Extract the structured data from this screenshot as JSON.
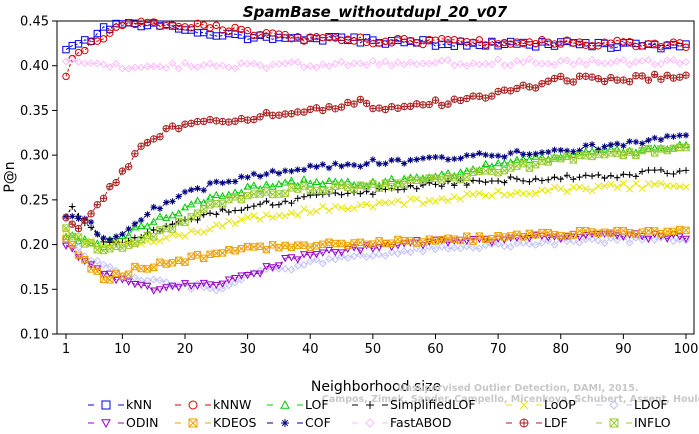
{
  "chart_data": {
    "type": "line",
    "title": "SpamBase_withoutdupl_20_v07",
    "xlabel": "Neighborhood size",
    "ylabel": "P@n",
    "xlim": [
      1,
      100
    ],
    "ylim": [
      0.1,
      0.45
    ],
    "xticks": [
      1,
      10,
      20,
      30,
      40,
      50,
      60,
      70,
      80,
      90,
      100
    ],
    "yticks": [
      0.1,
      0.15,
      0.2,
      0.25,
      0.3,
      0.35,
      0.4,
      0.45
    ],
    "ytick_labels": [
      "0.10",
      "0.15",
      "0.20",
      "0.25",
      "0.30",
      "0.35",
      "0.40",
      "0.45"
    ],
    "watermark_line1": "Unsupervised Outlier Detection, DAMI, 2015.",
    "watermark_line2": "Campos, Zimek, Sander, Campello, Micenkova, Schubert, Assent, Houle",
    "grid": false,
    "legend_position": "bottom",
    "series": [
      {
        "name": "kNN",
        "color": "#0000ee",
        "marker": "square",
        "knots": [
          [
            1,
            0.418
          ],
          [
            3,
            0.422
          ],
          [
            5,
            0.43
          ],
          [
            7,
            0.44
          ],
          [
            10,
            0.446
          ],
          [
            15,
            0.445
          ],
          [
            20,
            0.441
          ],
          [
            25,
            0.436
          ],
          [
            30,
            0.432
          ],
          [
            40,
            0.43
          ],
          [
            50,
            0.428
          ],
          [
            60,
            0.425
          ],
          [
            70,
            0.424
          ],
          [
            80,
            0.424
          ],
          [
            90,
            0.423
          ],
          [
            100,
            0.421
          ]
        ]
      },
      {
        "name": "kNNW",
        "color": "#dd0000",
        "marker": "circle",
        "knots": [
          [
            1,
            0.388
          ],
          [
            2,
            0.41
          ],
          [
            4,
            0.42
          ],
          [
            7,
            0.432
          ],
          [
            10,
            0.445
          ],
          [
            15,
            0.447
          ],
          [
            20,
            0.446
          ],
          [
            25,
            0.444
          ],
          [
            30,
            0.437
          ],
          [
            40,
            0.43
          ],
          [
            50,
            0.428
          ],
          [
            60,
            0.427
          ],
          [
            70,
            0.426
          ],
          [
            80,
            0.426
          ],
          [
            90,
            0.425
          ],
          [
            100,
            0.424
          ]
        ]
      },
      {
        "name": "LOF",
        "color": "#00cc00",
        "marker": "triangle",
        "knots": [
          [
            1,
            0.21
          ],
          [
            4,
            0.205
          ],
          [
            7,
            0.2
          ],
          [
            10,
            0.21
          ],
          [
            15,
            0.225
          ],
          [
            20,
            0.24
          ],
          [
            25,
            0.255
          ],
          [
            30,
            0.262
          ],
          [
            35,
            0.267
          ],
          [
            40,
            0.27
          ],
          [
            50,
            0.268
          ],
          [
            60,
            0.275
          ],
          [
            70,
            0.29
          ],
          [
            80,
            0.3
          ],
          [
            90,
            0.305
          ],
          [
            100,
            0.31
          ]
        ]
      },
      {
        "name": "SimplifiedLOF",
        "color": "#000000",
        "marker": "plus",
        "knots": [
          [
            1,
            0.23
          ],
          [
            2,
            0.242
          ],
          [
            4,
            0.225
          ],
          [
            7,
            0.2
          ],
          [
            10,
            0.205
          ],
          [
            15,
            0.215
          ],
          [
            20,
            0.225
          ],
          [
            25,
            0.237
          ],
          [
            30,
            0.243
          ],
          [
            35,
            0.248
          ],
          [
            40,
            0.252
          ],
          [
            50,
            0.258
          ],
          [
            60,
            0.268
          ],
          [
            70,
            0.272
          ],
          [
            80,
            0.275
          ],
          [
            90,
            0.278
          ],
          [
            100,
            0.283
          ]
        ]
      },
      {
        "name": "LoOP",
        "color": "#e8e800",
        "marker": "x",
        "knots": [
          [
            1,
            0.215
          ],
          [
            4,
            0.205
          ],
          [
            7,
            0.198
          ],
          [
            10,
            0.2
          ],
          [
            15,
            0.205
          ],
          [
            20,
            0.212
          ],
          [
            25,
            0.22
          ],
          [
            30,
            0.228
          ],
          [
            35,
            0.234
          ],
          [
            40,
            0.238
          ],
          [
            50,
            0.245
          ],
          [
            60,
            0.25
          ],
          [
            70,
            0.258
          ],
          [
            80,
            0.262
          ],
          [
            90,
            0.265
          ],
          [
            100,
            0.267
          ]
        ]
      },
      {
        "name": "LDOF",
        "color": "#c0c0ff",
        "marker": "diamond",
        "knots": [
          [
            1,
            0.2
          ],
          [
            3,
            0.195
          ],
          [
            6,
            0.18
          ],
          [
            10,
            0.165
          ],
          [
            15,
            0.158
          ],
          [
            20,
            0.155
          ],
          [
            25,
            0.15
          ],
          [
            30,
            0.165
          ],
          [
            35,
            0.172
          ],
          [
            40,
            0.18
          ],
          [
            50,
            0.188
          ],
          [
            60,
            0.195
          ],
          [
            70,
            0.2
          ],
          [
            80,
            0.203
          ],
          [
            90,
            0.205
          ],
          [
            100,
            0.207
          ]
        ]
      },
      {
        "name": "ODIN",
        "color": "#9900cc",
        "marker": "triangle-down",
        "knots": [
          [
            1,
            0.2
          ],
          [
            3,
            0.185
          ],
          [
            6,
            0.17
          ],
          [
            10,
            0.158
          ],
          [
            15,
            0.152
          ],
          [
            20,
            0.155
          ],
          [
            25,
            0.153
          ],
          [
            30,
            0.165
          ],
          [
            35,
            0.18
          ],
          [
            40,
            0.19
          ],
          [
            50,
            0.198
          ],
          [
            60,
            0.203
          ],
          [
            70,
            0.205
          ],
          [
            80,
            0.21
          ],
          [
            90,
            0.21
          ],
          [
            100,
            0.208
          ]
        ]
      },
      {
        "name": "KDEOS",
        "color": "#f0a000",
        "marker": "square-x",
        "knots": [
          [
            1,
            0.21
          ],
          [
            3,
            0.19
          ],
          [
            5,
            0.175
          ],
          [
            7,
            0.16
          ],
          [
            10,
            0.168
          ],
          [
            15,
            0.178
          ],
          [
            20,
            0.183
          ],
          [
            25,
            0.19
          ],
          [
            30,
            0.195
          ],
          [
            35,
            0.198
          ],
          [
            40,
            0.2
          ],
          [
            50,
            0.203
          ],
          [
            60,
            0.205
          ],
          [
            70,
            0.208
          ],
          [
            80,
            0.212
          ],
          [
            90,
            0.214
          ],
          [
            100,
            0.215
          ]
        ]
      },
      {
        "name": "COF",
        "color": "#000080",
        "marker": "star",
        "knots": [
          [
            1,
            0.232
          ],
          [
            3,
            0.23
          ],
          [
            5,
            0.225
          ],
          [
            7,
            0.205
          ],
          [
            10,
            0.215
          ],
          [
            15,
            0.24
          ],
          [
            20,
            0.258
          ],
          [
            25,
            0.268
          ],
          [
            30,
            0.276
          ],
          [
            40,
            0.285
          ],
          [
            50,
            0.292
          ],
          [
            60,
            0.296
          ],
          [
            70,
            0.3
          ],
          [
            80,
            0.305
          ],
          [
            90,
            0.312
          ],
          [
            100,
            0.323
          ]
        ]
      },
      {
        "name": "FastABOD",
        "color": "#ffbbff",
        "marker": "diamond",
        "knots": [
          [
            1,
            0.405
          ],
          [
            5,
            0.402
          ],
          [
            10,
            0.4
          ],
          [
            20,
            0.4
          ],
          [
            30,
            0.4
          ],
          [
            40,
            0.401
          ],
          [
            50,
            0.402
          ],
          [
            60,
            0.403
          ],
          [
            70,
            0.404
          ],
          [
            80,
            0.404
          ],
          [
            90,
            0.404
          ],
          [
            100,
            0.405
          ]
        ]
      },
      {
        "name": "LDF",
        "color": "#aa2222",
        "marker": "circle-plus",
        "knots": [
          [
            1,
            0.228
          ],
          [
            3,
            0.215
          ],
          [
            5,
            0.232
          ],
          [
            7,
            0.255
          ],
          [
            9,
            0.272
          ],
          [
            11,
            0.29
          ],
          [
            13,
            0.31
          ],
          [
            15,
            0.32
          ],
          [
            18,
            0.33
          ],
          [
            20,
            0.335
          ],
          [
            25,
            0.337
          ],
          [
            30,
            0.342
          ],
          [
            40,
            0.35
          ],
          [
            48,
            0.36
          ],
          [
            50,
            0.352
          ],
          [
            60,
            0.358
          ],
          [
            70,
            0.368
          ],
          [
            80,
            0.385
          ],
          [
            90,
            0.385
          ],
          [
            100,
            0.39
          ]
        ]
      },
      {
        "name": "INFLO",
        "color": "#99cc33",
        "marker": "square-x",
        "knots": [
          [
            1,
            0.215
          ],
          [
            3,
            0.205
          ],
          [
            6,
            0.195
          ],
          [
            10,
            0.195
          ],
          [
            15,
            0.21
          ],
          [
            20,
            0.225
          ],
          [
            25,
            0.245
          ],
          [
            30,
            0.255
          ],
          [
            35,
            0.26
          ],
          [
            40,
            0.263
          ],
          [
            50,
            0.265
          ],
          [
            60,
            0.272
          ],
          [
            70,
            0.282
          ],
          [
            80,
            0.295
          ],
          [
            90,
            0.302
          ],
          [
            100,
            0.308
          ]
        ]
      }
    ]
  }
}
